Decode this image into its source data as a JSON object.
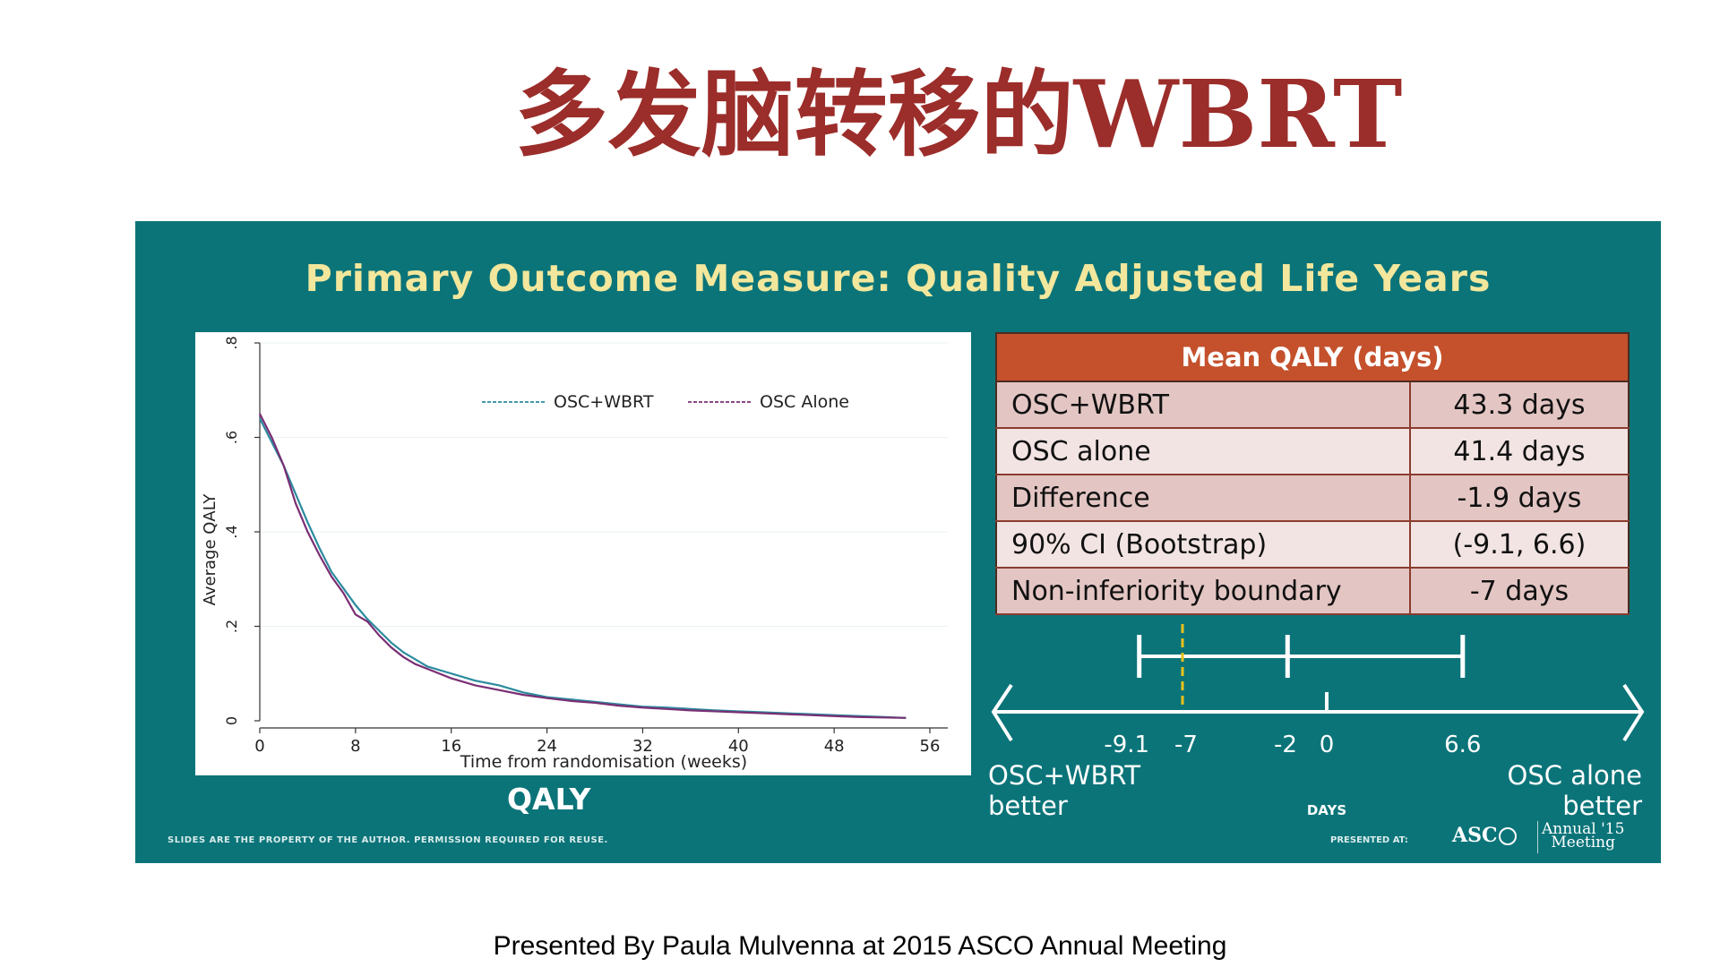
{
  "page_title": "多发脑转移的WBRT",
  "panel_title": "Primary Outcome Measure: Quality Adjusted Life Years",
  "plot_caption": "QALY",
  "chart_data": {
    "type": "line",
    "xlabel": "Time from randomisation (weeks)",
    "ylabel": "Average QALY",
    "xlim": [
      0,
      56
    ],
    "ylim": [
      0,
      0.8
    ],
    "xticks": [
      0,
      8,
      16,
      24,
      32,
      40,
      48,
      56
    ],
    "xtick_labels": [
      "0",
      "8",
      "16",
      "24",
      "32",
      "40",
      "48",
      "56"
    ],
    "yticks": [
      0,
      0.2,
      0.4,
      0.6,
      0.8
    ],
    "ytick_labels": [
      "0",
      ".2",
      ".4",
      ".6",
      ".8"
    ],
    "legend": "top-right",
    "grid": "horizontal",
    "series": [
      {
        "name": "OSC+WBRT",
        "color": "#2b8a9e",
        "x": [
          0,
          1,
          2,
          3,
          4,
          5,
          6,
          7,
          8,
          9,
          10,
          11,
          12,
          13,
          14,
          16,
          18,
          20,
          22,
          24,
          26,
          28,
          30,
          32,
          34,
          36,
          38,
          40,
          42,
          44,
          46,
          48,
          50,
          52,
          54
        ],
        "y": [
          0.64,
          0.59,
          0.54,
          0.48,
          0.42,
          0.365,
          0.315,
          0.28,
          0.245,
          0.215,
          0.19,
          0.165,
          0.145,
          0.13,
          0.115,
          0.1,
          0.085,
          0.075,
          0.06,
          0.05,
          0.045,
          0.04,
          0.035,
          0.03,
          0.028,
          0.025,
          0.022,
          0.02,
          0.018,
          0.016,
          0.014,
          0.012,
          0.01,
          0.008,
          0.006
        ]
      },
      {
        "name": "OSC Alone",
        "color": "#7a2e73",
        "x": [
          0,
          1,
          2,
          3,
          4,
          5,
          6,
          7,
          8,
          9,
          10,
          11,
          12,
          13,
          14,
          16,
          18,
          20,
          22,
          24,
          26,
          28,
          30,
          32,
          34,
          36,
          38,
          40,
          42,
          44,
          46,
          48,
          50,
          52,
          54
        ],
        "y": [
          0.65,
          0.6,
          0.54,
          0.46,
          0.4,
          0.35,
          0.305,
          0.27,
          0.225,
          0.21,
          0.18,
          0.155,
          0.135,
          0.12,
          0.11,
          0.09,
          0.075,
          0.065,
          0.055,
          0.048,
          0.042,
          0.038,
          0.032,
          0.028,
          0.025,
          0.022,
          0.02,
          0.018,
          0.016,
          0.014,
          0.012,
          0.01,
          0.008,
          0.007,
          0.006
        ]
      }
    ]
  },
  "table": {
    "header": "Mean QALY (days)",
    "rows": [
      {
        "label": "OSC+WBRT",
        "value": "43.3 days"
      },
      {
        "label": "OSC alone",
        "value": "41.4 days"
      },
      {
        "label": "Difference",
        "value": "-1.9 days"
      },
      {
        "label": "90% CI (Bootstrap)",
        "value": "(-9.1, 6.6)"
      },
      {
        "label": "Non-inferiority boundary",
        "value": "-7 days"
      }
    ]
  },
  "ci_diagram": {
    "ticks": [
      "-9.1",
      "-7",
      "-2",
      "0",
      "6.6"
    ],
    "left_label_line1": "OSC+WBRT",
    "left_label_line2": "better",
    "right_label_line1": "OSC alone",
    "right_label_line2": "better",
    "axis_label": "DAYS",
    "ci_low": -9.1,
    "ci_point": -1.9,
    "ci_high": 6.6,
    "boundary": -7
  },
  "footer": {
    "rights": "SLIDES ARE THE PROPERTY OF THE AUTHOR. PERMISSION REQUIRED FOR REUSE.",
    "presented_at": "PRESENTED AT:",
    "asco": "ASC",
    "annual_line1": "Annual '15",
    "annual_line2": "Meeting"
  },
  "presented_by": "Presented By Paula Mulvenna at 2015 ASCO Annual Meeting"
}
